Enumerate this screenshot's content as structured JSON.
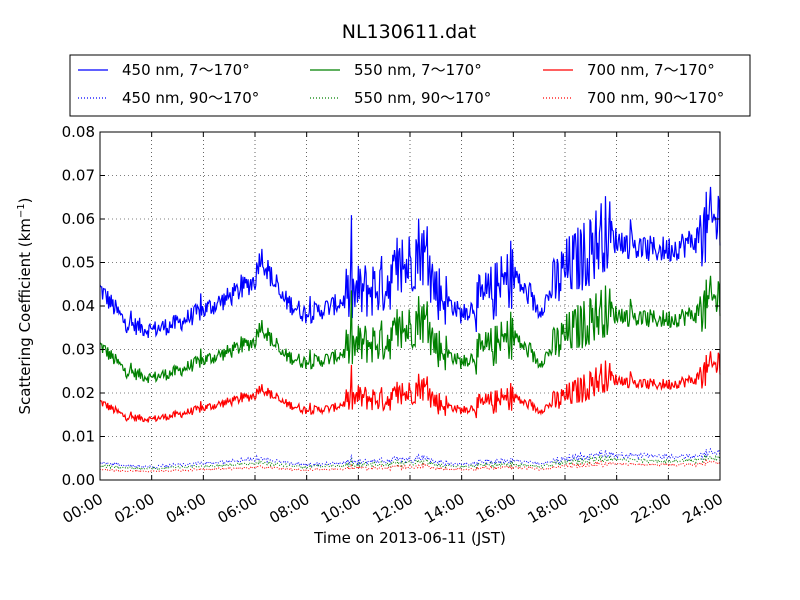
{
  "chart_data": {
    "type": "line",
    "title": "NL130611.dat",
    "xlabel": "Time on 2013-06-11 (JST)",
    "ylabel_main": "Scattering Coefficient (km",
    "ylabel_exp": "−1",
    "ylabel_close": ")",
    "xlim": [
      "00:00",
      "24:00"
    ],
    "ylim": [
      0,
      0.08
    ],
    "grid": true,
    "legend_position": "top, above plot",
    "x_ticks": [
      "00:00",
      "02:00",
      "04:00",
      "06:00",
      "08:00",
      "10:00",
      "12:00",
      "14:00",
      "16:00",
      "18:00",
      "20:00",
      "22:00",
      "24:00"
    ],
    "y_ticks": [
      "0.00",
      "0.01",
      "0.02",
      "0.03",
      "0.04",
      "0.05",
      "0.06",
      "0.07",
      "0.08"
    ],
    "x_hours": [
      0,
      1,
      2,
      3,
      4,
      5,
      6,
      6.2,
      7,
      8,
      9,
      10,
      11,
      12,
      12.4,
      13,
      14,
      15,
      16,
      17,
      18,
      19,
      19.5,
      20,
      21,
      22,
      23,
      24
    ],
    "series": [
      {
        "name": "450 nm, 7～170°",
        "color": "#0000ff",
        "style": "solid",
        "values": [
          0.044,
          0.036,
          0.0345,
          0.036,
          0.039,
          0.042,
          0.046,
          0.052,
          0.042,
          0.038,
          0.04,
          0.043,
          0.045,
          0.05,
          0.054,
          0.044,
          0.038,
          0.042,
          0.047,
          0.039,
          0.048,
          0.053,
          0.057,
          0.055,
          0.053,
          0.053,
          0.055,
          0.06
        ]
      },
      {
        "name": "450 nm, 90～170°",
        "color": "#0000ff",
        "style": "dotted",
        "values": [
          0.004,
          0.0033,
          0.003,
          0.0035,
          0.0038,
          0.0042,
          0.0048,
          0.0052,
          0.004,
          0.0035,
          0.0038,
          0.0042,
          0.0044,
          0.0048,
          0.0052,
          0.0042,
          0.0036,
          0.0041,
          0.0044,
          0.0038,
          0.0048,
          0.0056,
          0.006,
          0.0058,
          0.0055,
          0.0054,
          0.0055,
          0.0062
        ]
      },
      {
        "name": "550 nm, 7～170°",
        "color": "#008000",
        "style": "solid",
        "values": [
          0.031,
          0.025,
          0.0235,
          0.025,
          0.0275,
          0.0295,
          0.032,
          0.036,
          0.029,
          0.027,
          0.028,
          0.031,
          0.032,
          0.035,
          0.038,
          0.031,
          0.027,
          0.03,
          0.033,
          0.027,
          0.033,
          0.037,
          0.039,
          0.038,
          0.037,
          0.037,
          0.038,
          0.042
        ]
      },
      {
        "name": "550 nm, 90～170°",
        "color": "#008000",
        "style": "dotted",
        "values": [
          0.0032,
          0.0028,
          0.0026,
          0.0029,
          0.0031,
          0.0034,
          0.0038,
          0.0042,
          0.0034,
          0.003,
          0.0032,
          0.0035,
          0.0036,
          0.004,
          0.0043,
          0.0035,
          0.003,
          0.0034,
          0.0036,
          0.0031,
          0.004,
          0.0046,
          0.0049,
          0.0047,
          0.0045,
          0.0044,
          0.0045,
          0.005
        ]
      },
      {
        "name": "700 nm, 7～170°",
        "color": "#ff0000",
        "style": "solid",
        "values": [
          0.018,
          0.0145,
          0.014,
          0.015,
          0.0165,
          0.018,
          0.0195,
          0.0215,
          0.018,
          0.016,
          0.0165,
          0.019,
          0.0185,
          0.02,
          0.022,
          0.018,
          0.016,
          0.0175,
          0.019,
          0.016,
          0.019,
          0.022,
          0.024,
          0.023,
          0.022,
          0.022,
          0.023,
          0.027
        ]
      },
      {
        "name": "700 nm, 90～170°",
        "color": "#ff0000",
        "style": "dotted",
        "values": [
          0.0024,
          0.0021,
          0.002,
          0.0022,
          0.0024,
          0.0026,
          0.0029,
          0.0032,
          0.0026,
          0.0023,
          0.0025,
          0.0027,
          0.0028,
          0.0031,
          0.0033,
          0.0027,
          0.0024,
          0.0027,
          0.0029,
          0.0025,
          0.0031,
          0.0035,
          0.0038,
          0.0037,
          0.0035,
          0.0035,
          0.0036,
          0.004
        ]
      }
    ]
  }
}
